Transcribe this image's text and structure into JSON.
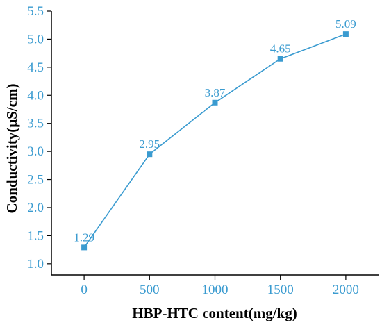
{
  "chart_data": {
    "type": "line",
    "xlabel": "HBP-HTC content(mg/kg)",
    "ylabel": "Conductivity(μS/cm)",
    "x": [
      0,
      500,
      1000,
      1500,
      2000
    ],
    "x_ticks": [
      "0",
      "500",
      "1000",
      "1500",
      "2000"
    ],
    "y_ticks": [
      "1.0",
      "1.5",
      "2.0",
      "2.5",
      "3.0",
      "3.5",
      "4.0",
      "4.5",
      "5.0",
      "5.5"
    ],
    "series": [
      {
        "values": [
          1.29,
          2.95,
          3.87,
          4.65,
          5.09
        ],
        "labels": [
          "1.29",
          "2.95",
          "3.87",
          "4.65",
          "5.09"
        ]
      }
    ],
    "xlim": [
      -250,
      2250
    ],
    "ylim": [
      0.8,
      5.5
    ],
    "grid": false,
    "legend": "none",
    "colors": {
      "series": "#3a9bd0",
      "tick_labels": "#3a9bd0",
      "axis": "#000000"
    }
  }
}
